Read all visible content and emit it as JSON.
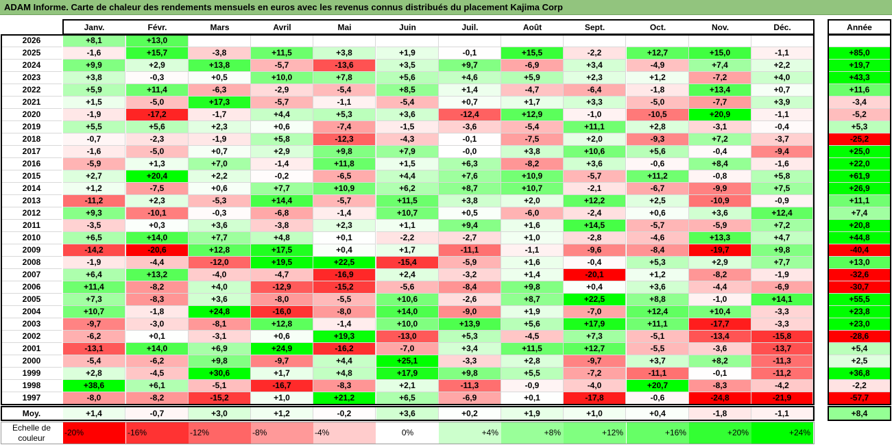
{
  "title": "ADAM Informe. Carte de chaleur des rendements mensuels en euros avec les revenus connus distribués du placement Kajima Corp",
  "chart_data": {
    "type": "heatmap",
    "columns": [
      "Janv.",
      "Févr.",
      "Mars",
      "Avril",
      "Mai",
      "Juin",
      "Juil.",
      "Août",
      "Sept.",
      "Oct.",
      "Nov.",
      "Déc."
    ],
    "year_column_label": "Année",
    "rows": [
      {
        "year": "2026",
        "months": [
          "+8,1",
          "+13,0",
          "",
          "",
          "",
          "",
          "",
          "",
          "",
          "",
          "",
          ""
        ],
        "annual": ""
      },
      {
        "year": "2025",
        "months": [
          "-1,6",
          "+15,7",
          "-3,8",
          "+11,5",
          "+3,8",
          "+1,9",
          "-0,1",
          "+15,5",
          "-2,2",
          "+12,7",
          "+15,0",
          "-1,1"
        ],
        "annual": "+85,0"
      },
      {
        "year": "2024",
        "months": [
          "+9,9",
          "+2,9",
          "+13,8",
          "-5,7",
          "-13,6",
          "+3,5",
          "+9,7",
          "-6,9",
          "+3,4",
          "-4,9",
          "+7,4",
          "+2,2"
        ],
        "annual": "+19,7"
      },
      {
        "year": "2023",
        "months": [
          "+3,8",
          "-0,3",
          "+0,5",
          "+10,0",
          "+7,8",
          "+5,6",
          "+4,6",
          "+5,9",
          "+2,3",
          "+1,2",
          "-7,2",
          "+4,0"
        ],
        "annual": "+43,3"
      },
      {
        "year": "2022",
        "months": [
          "+5,9",
          "+11,4",
          "-6,3",
          "-2,9",
          "-5,4",
          "+8,5",
          "+1,4",
          "-4,7",
          "-6,4",
          "-1,8",
          "+13,4",
          "+0,7"
        ],
        "annual": "+11,6"
      },
      {
        "year": "2021",
        "months": [
          "+1,5",
          "-5,0",
          "+17,3",
          "-5,7",
          "-1,1",
          "-5,4",
          "+0,7",
          "+1,7",
          "+3,3",
          "-5,0",
          "-7,7",
          "+3,9"
        ],
        "annual": "-3,4"
      },
      {
        "year": "2020",
        "months": [
          "-1,9",
          "-17,2",
          "-1,7",
          "+4,4",
          "+5,3",
          "+3,6",
          "-12,4",
          "+12,9",
          "-1,0",
          "-10,5",
          "+20,9",
          "-1,1"
        ],
        "annual": "-5,2"
      },
      {
        "year": "2019",
        "months": [
          "+5,5",
          "+5,6",
          "+2,3",
          "+0,6",
          "-7,4",
          "-1,5",
          "-3,6",
          "-5,4",
          "+11,1",
          "+2,8",
          "-3,1",
          "-0,4"
        ],
        "annual": "+5,3"
      },
      {
        "year": "2018",
        "months": [
          "-0,7",
          "-2,3",
          "-1,9",
          "+5,8",
          "-12,3",
          "-4,3",
          "-0,1",
          "-7,5",
          "+2,0",
          "-9,3",
          "+7,2",
          "-3,7"
        ],
        "annual": "-25,2"
      },
      {
        "year": "2017",
        "months": [
          "-1,6",
          "-5,0",
          "+0,7",
          "+2,9",
          "+9,8",
          "+7,9",
          "-0,0",
          "+3,8",
          "+10,6",
          "+5,6",
          "-0,4",
          "-9,4"
        ],
        "annual": "+25,0"
      },
      {
        "year": "2016",
        "months": [
          "-5,9",
          "+1,3",
          "+7,0",
          "-1,4",
          "+11,8",
          "+1,5",
          "+6,3",
          "-8,2",
          "+3,6",
          "-0,6",
          "+8,4",
          "-1,6"
        ],
        "annual": "+22,0"
      },
      {
        "year": "2015",
        "months": [
          "+2,7",
          "+20,4",
          "+2,2",
          "-0,2",
          "-6,5",
          "+4,4",
          "+7,6",
          "+10,9",
          "-5,7",
          "+11,2",
          "-0,8",
          "+5,8"
        ],
        "annual": "+61,9"
      },
      {
        "year": "2014",
        "months": [
          "+1,2",
          "-7,5",
          "+0,6",
          "+7,7",
          "+10,9",
          "+6,2",
          "+8,7",
          "+10,7",
          "-2,1",
          "-6,7",
          "-9,9",
          "+7,5"
        ],
        "annual": "+26,9"
      },
      {
        "year": "2013",
        "months": [
          "-11,2",
          "+2,3",
          "-5,3",
          "+14,4",
          "-5,7",
          "+11,5",
          "+3,8",
          "+2,0",
          "+12,2",
          "+2,5",
          "-10,9",
          "-0,9"
        ],
        "annual": "+11,1"
      },
      {
        "year": "2012",
        "months": [
          "+9,3",
          "-10,1",
          "-0,3",
          "-6,8",
          "-1,4",
          "+10,7",
          "+0,5",
          "-6,0",
          "-2,4",
          "+0,6",
          "+3,6",
          "+12,4"
        ],
        "annual": "+7,4"
      },
      {
        "year": "2011",
        "months": [
          "-3,5",
          "+0,3",
          "+3,6",
          "-3,8",
          "+2,3",
          "+1,1",
          "+9,4",
          "+1,6",
          "+14,5",
          "-5,7",
          "-5,9",
          "+7,2"
        ],
        "annual": "+20,8"
      },
      {
        "year": "2010",
        "months": [
          "+6,5",
          "+14,0",
          "+7,7",
          "+4,8",
          "+0,1",
          "-2,2",
          "-2,7",
          "+1,0",
          "-2,8",
          "-4,6",
          "+13,3",
          "+4,7"
        ],
        "annual": "+44,8"
      },
      {
        "year": "2009",
        "months": [
          "-14,2",
          "-20,6",
          "+12,8",
          "+17,5",
          "+0,4",
          "+1,7",
          "-11,1",
          "-1,1",
          "-9,6",
          "-8,4",
          "-19,7",
          "+9,8"
        ],
        "annual": "-40,4"
      },
      {
        "year": "2008",
        "months": [
          "-1,9",
          "-4,4",
          "-12,0",
          "+19,5",
          "+22,5",
          "-15,4",
          "-5,9",
          "+1,6",
          "-0,4",
          "+5,3",
          "+2,9",
          "+7,7"
        ],
        "annual": "+13,0"
      },
      {
        "year": "2007",
        "months": [
          "+6,4",
          "+13,2",
          "-4,0",
          "-4,7",
          "-16,9",
          "+2,4",
          "-3,2",
          "+1,4",
          "-20,1",
          "+1,2",
          "-8,2",
          "-1,9"
        ],
        "annual": "-32,6"
      },
      {
        "year": "2006",
        "months": [
          "+11,4",
          "-8,2",
          "+4,0",
          "-12,9",
          "-15,2",
          "-5,6",
          "-8,4",
          "+9,8",
          "+0,4",
          "+3,6",
          "-4,4",
          "-6,9"
        ],
        "annual": "-30,7"
      },
      {
        "year": "2005",
        "months": [
          "+7,3",
          "-8,3",
          "+3,6",
          "-8,0",
          "-5,5",
          "+10,6",
          "-2,6",
          "+8,7",
          "+22,5",
          "+8,8",
          "-1,0",
          "+14,1"
        ],
        "annual": "+55,5"
      },
      {
        "year": "2004",
        "months": [
          "+10,7",
          "-1,8",
          "+24,8",
          "-16,0",
          "-8,0",
          "+14,0",
          "-9,0",
          "+1,9",
          "-7,0",
          "+12,4",
          "+10,4",
          "-3,3"
        ],
        "annual": "+23,8"
      },
      {
        "year": "2003",
        "months": [
          "-9,7",
          "-3,0",
          "-8,1",
          "+12,8",
          "-1,4",
          "+10,0",
          "+13,9",
          "+5,6",
          "+17,9",
          "+11,1",
          "-17,7",
          "-3,3"
        ],
        "annual": "+23,0"
      },
      {
        "year": "2002",
        "months": [
          "-6,2",
          "+0,1",
          "-3,1",
          "+0,6",
          "+19,3",
          "-13,0",
          "+5,3",
          "-4,5",
          "+7,3",
          "-5,1",
          "-13,4",
          "-15,8"
        ],
        "annual": "-28,6"
      },
      {
        "year": "2001",
        "months": [
          "-13,1",
          "+14,0",
          "+6,9",
          "+24,9",
          "-16,2",
          "-7,0",
          "+3,4",
          "+11,5",
          "+12,7",
          "-5,5",
          "-3,6",
          "-13,7"
        ],
        "annual": "+5,4"
      },
      {
        "year": "2000",
        "months": [
          "-5,4",
          "-6,2",
          "+9,8",
          "-9,7",
          "+4,4",
          "+25,1",
          "-3,3",
          "+2,8",
          "-9,7",
          "+3,7",
          "+8,2",
          "-11,3"
        ],
        "annual": "+2,5"
      },
      {
        "year": "1999",
        "months": [
          "+2,8",
          "-4,5",
          "+30,6",
          "+1,7",
          "+4,8",
          "+17,9",
          "+9,8",
          "+5,5",
          "-7,2",
          "-11,1",
          "-0,1",
          "-11,2"
        ],
        "annual": "+36,8"
      },
      {
        "year": "1998",
        "months": [
          "+38,6",
          "+6,1",
          "-5,1",
          "-16,7",
          "-8,3",
          "+2,1",
          "-11,3",
          "-0,9",
          "-4,0",
          "+20,7",
          "-8,3",
          "-4,2"
        ],
        "annual": "-2,2"
      },
      {
        "year": "1997",
        "months": [
          "-8,0",
          "-8,2",
          "-15,2",
          "+1,0",
          "+21,2",
          "+6,5",
          "-6,9",
          "+0,1",
          "-17,8",
          "-0,6",
          "-24,8",
          "-21,9"
        ],
        "annual": "-57,7"
      }
    ],
    "average_row": {
      "label": "Moy.",
      "months": [
        "+1,4",
        "-0,7",
        "+3,0",
        "+1,2",
        "-0,2",
        "+3,6",
        "+0,2",
        "+1,9",
        "+1,0",
        "+0,4",
        "-1,8",
        "-1,1"
      ],
      "annual": "+8,4"
    },
    "color_scale": {
      "label_line1": "Echelle de",
      "label_line2": "couleur",
      "steps": [
        {
          "label": "-20%",
          "value": -20,
          "color": "#ff0000"
        },
        {
          "label": "-16%",
          "value": -16,
          "color": "#ff3333"
        },
        {
          "label": "-12%",
          "value": -12,
          "color": "#ff6666"
        },
        {
          "label": "-8%",
          "value": -8,
          "color": "#ff9999"
        },
        {
          "label": "-4%",
          "value": -4,
          "color": "#ffcccc"
        },
        {
          "label": "0%",
          "value": 0,
          "color": "#ffffff"
        },
        {
          "label": "+4%",
          "value": 4,
          "color": "#ccffcc"
        },
        {
          "label": "+8%",
          "value": 8,
          "color": "#99ff99"
        },
        {
          "label": "+12%",
          "value": 12,
          "color": "#80ff80"
        },
        {
          "label": "+16%",
          "value": 16,
          "color": "#66ff66"
        },
        {
          "label": "+20%",
          "value": 20,
          "color": "#33ff33"
        },
        {
          "label": "+24%",
          "value": 24,
          "color": "#00ff00"
        }
      ]
    }
  }
}
